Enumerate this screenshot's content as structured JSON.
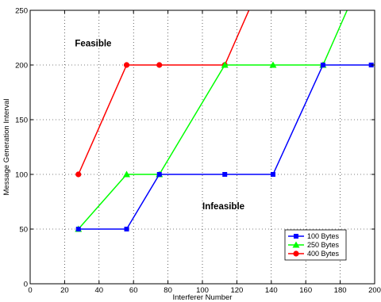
{
  "chart_data": {
    "type": "line",
    "xlabel": "Interferer Number",
    "ylabel": "Message Generation Interval",
    "xlim": [
      0,
      200
    ],
    "ylim": [
      0,
      250
    ],
    "xticks": [
      0,
      20,
      40,
      60,
      80,
      100,
      120,
      140,
      160,
      180,
      200
    ],
    "yticks": [
      0,
      50,
      100,
      150,
      200,
      250
    ],
    "grid": true,
    "legend_position": "lower-right",
    "annotations": [
      {
        "text": "Feasible",
        "x": 26,
        "y": 217
      },
      {
        "text": "Infeasible",
        "x": 100,
        "y": 68
      }
    ],
    "series": [
      {
        "name": "100 Bytes",
        "color": "#0000ff",
        "marker": "square",
        "x": [
          28,
          56,
          75,
          113,
          141,
          170,
          198
        ],
        "y": [
          50,
          50,
          100,
          100,
          100,
          200,
          200
        ]
      },
      {
        "name": "250 Bytes",
        "color": "#00ff00",
        "marker": "triangle",
        "x": [
          28,
          56,
          75,
          113,
          141,
          170,
          184
        ],
        "y": [
          50,
          100,
          100,
          200,
          200,
          200,
          250
        ]
      },
      {
        "name": "400 Bytes",
        "color": "#ff0000",
        "marker": "circle",
        "x": [
          28,
          56,
          75,
          113,
          127
        ],
        "y": [
          100,
          200,
          200,
          200,
          250
        ]
      }
    ]
  }
}
